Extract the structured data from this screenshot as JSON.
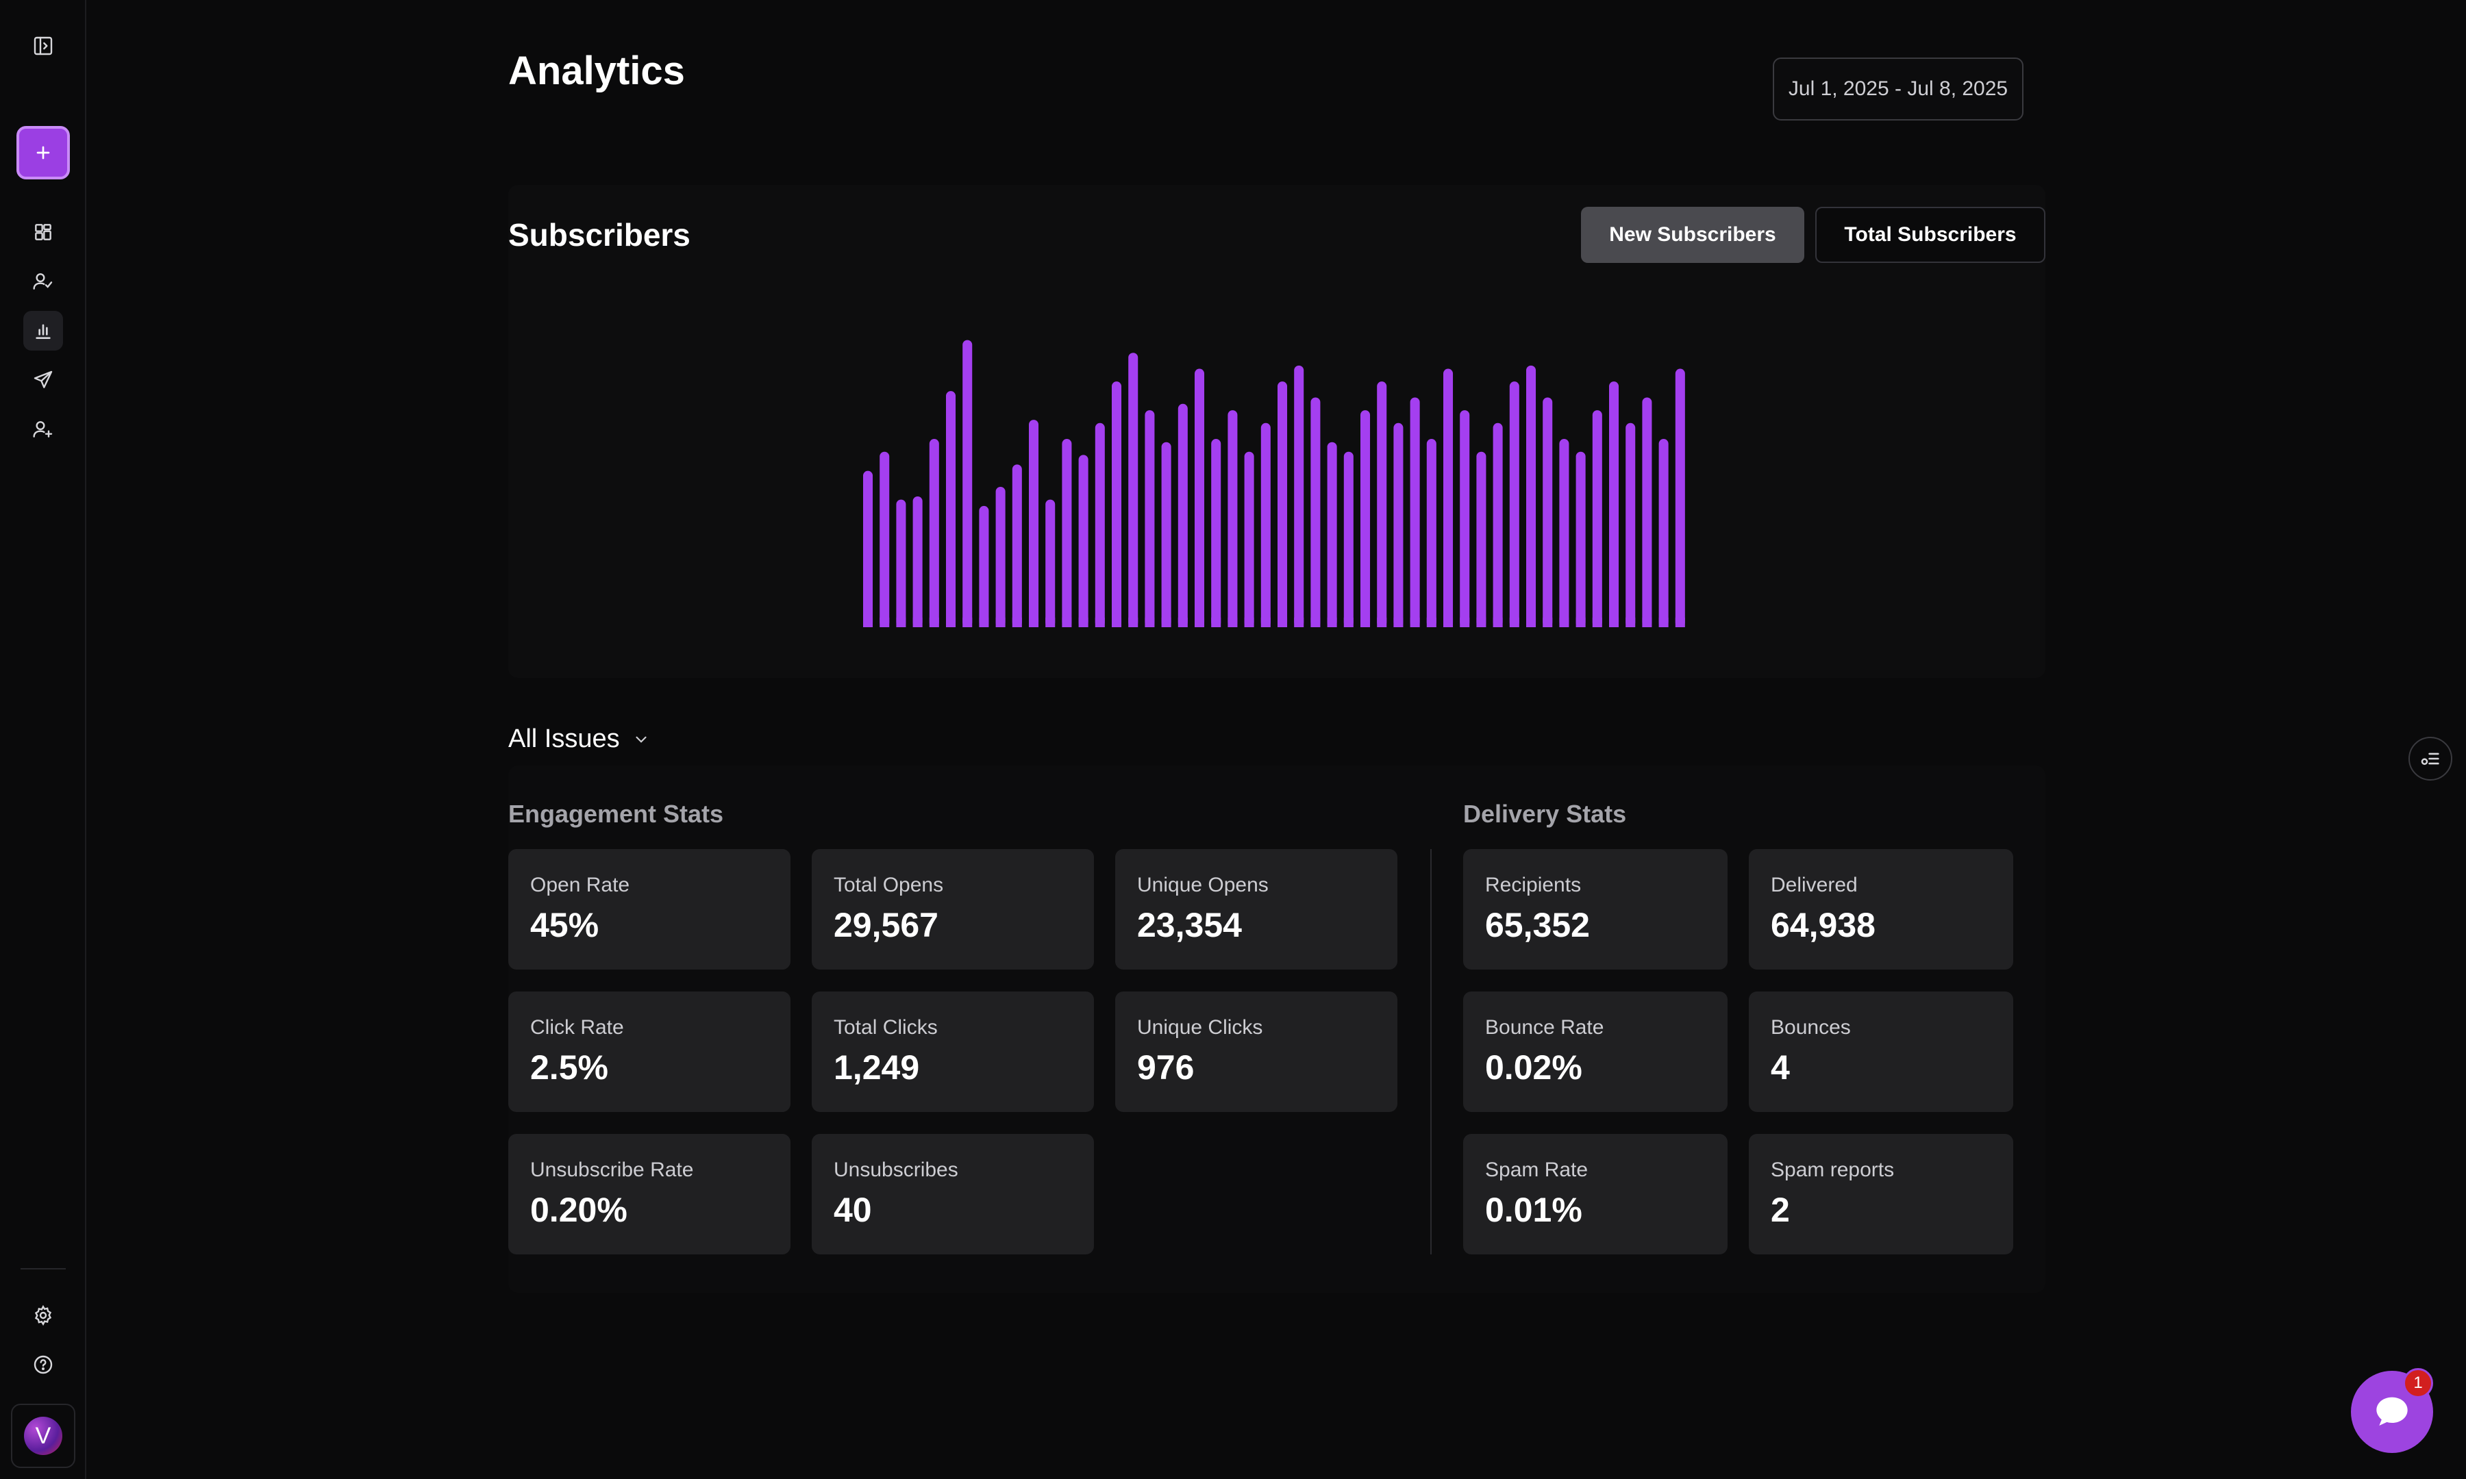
{
  "page": {
    "title": "Analytics",
    "date_range": "Jul 1, 2025 - Jul 8, 2025"
  },
  "sidebar": {
    "items": [
      {
        "name": "dashboard",
        "icon": "grid-icon"
      },
      {
        "name": "audience",
        "icon": "user-check-icon"
      },
      {
        "name": "analytics",
        "icon": "bar-chart-icon",
        "active": true
      },
      {
        "name": "send",
        "icon": "send-icon"
      },
      {
        "name": "add-user",
        "icon": "user-plus-icon"
      }
    ],
    "avatar_letter": "V"
  },
  "subscribers": {
    "title": "Subscribers",
    "toggle_new": "New Subscribers",
    "toggle_total": "Total Subscribers",
    "bar_color": "#a43ff0"
  },
  "chart_data": {
    "type": "bar",
    "title": "",
    "values": [
      49,
      55,
      40,
      41,
      59,
      74,
      90,
      38,
      44,
      51,
      65,
      40,
      59,
      54,
      64,
      77,
      86,
      68,
      58,
      70,
      81,
      59,
      68,
      55,
      64,
      77,
      82,
      72,
      58,
      55,
      68,
      77,
      64,
      72,
      59,
      81,
      68,
      55,
      64,
      77,
      82,
      72,
      59,
      55,
      68,
      77,
      64,
      72,
      59,
      81
    ],
    "ylim": [
      0,
      100
    ],
    "grid": false
  },
  "filter": {
    "label": "All Issues"
  },
  "engagement": {
    "title": "Engagement Stats",
    "cards": [
      {
        "label": "Open Rate",
        "value": "45%"
      },
      {
        "label": "Total Opens",
        "value": "29,567"
      },
      {
        "label": "Unique Opens",
        "value": "23,354"
      },
      {
        "label": "Click Rate",
        "value": "2.5%"
      },
      {
        "label": "Total Clicks",
        "value": "1,249"
      },
      {
        "label": "Unique Clicks",
        "value": "976"
      },
      {
        "label": "Unsubscribe Rate",
        "value": "0.20%"
      },
      {
        "label": "Unsubscribes",
        "value": "40"
      }
    ]
  },
  "delivery": {
    "title": "Delivery Stats",
    "cards": [
      {
        "label": "Recipients",
        "value": "65,352"
      },
      {
        "label": "Delivered",
        "value": "64,938"
      },
      {
        "label": "Bounce Rate",
        "value": "0.02%"
      },
      {
        "label": "Bounces",
        "value": "4"
      },
      {
        "label": "Spam Rate",
        "value": "0.01%"
      },
      {
        "label": "Spam reports",
        "value": "2"
      }
    ]
  },
  "chat": {
    "badge_count": "1"
  }
}
